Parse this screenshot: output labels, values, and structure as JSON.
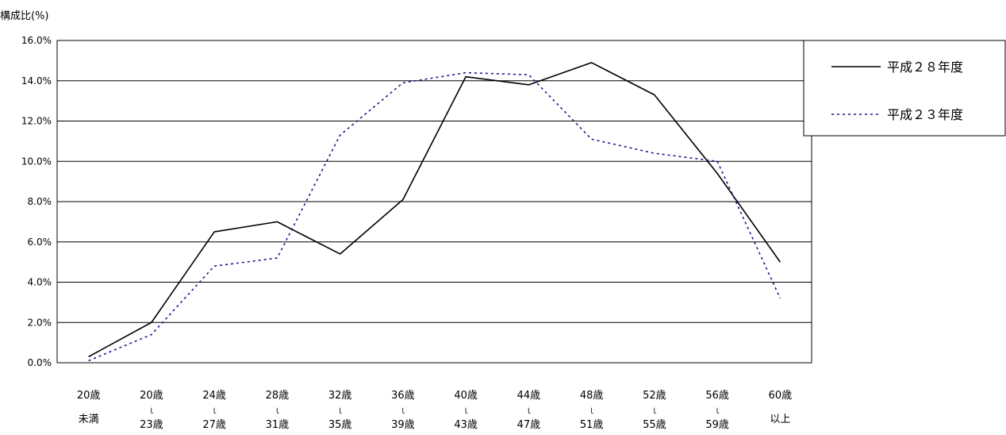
{
  "chart_data": {
    "type": "line",
    "ylabel": "構成比(%)",
    "ylim": [
      0,
      16
    ],
    "yticks": [
      "0.0%",
      "2.0%",
      "4.0%",
      "6.0%",
      "8.0%",
      "10.0%",
      "12.0%",
      "14.0%",
      "16.0%"
    ],
    "grid": true,
    "legend_position": "top-right",
    "categories": [
      {
        "line1": "20歳",
        "line2": "未満"
      },
      {
        "line1": "20歳",
        "mark": "ｌ",
        "line2": "23歳"
      },
      {
        "line1": "24歳",
        "mark": "ｌ",
        "line2": "27歳"
      },
      {
        "line1": "28歳",
        "mark": "ｌ",
        "line2": "31歳"
      },
      {
        "line1": "32歳",
        "mark": "ｌ",
        "line2": "35歳"
      },
      {
        "line1": "36歳",
        "mark": "ｌ",
        "line2": "39歳"
      },
      {
        "line1": "40歳",
        "mark": "ｌ",
        "line2": "43歳"
      },
      {
        "line1": "44歳",
        "mark": "ｌ",
        "line2": "47歳"
      },
      {
        "line1": "48歳",
        "mark": "ｌ",
        "line2": "51歳"
      },
      {
        "line1": "52歳",
        "mark": "ｌ",
        "line2": "55歳"
      },
      {
        "line1": "56歳",
        "mark": "ｌ",
        "line2": "59歳"
      },
      {
        "line1": "60歳",
        "line2": "以上"
      }
    ],
    "series": [
      {
        "name": "平成２８年度",
        "style": "solid",
        "color": "#000000",
        "values": [
          0.3,
          2.0,
          6.5,
          7.0,
          5.4,
          8.1,
          14.2,
          13.8,
          14.9,
          13.3,
          9.4,
          5.0
        ]
      },
      {
        "name": "平成２３年度",
        "style": "dotted",
        "color": "#1a1a8c",
        "values": [
          0.1,
          1.4,
          4.8,
          5.2,
          11.3,
          13.9,
          14.4,
          14.3,
          11.1,
          10.4,
          10.0,
          3.2
        ]
      }
    ]
  }
}
